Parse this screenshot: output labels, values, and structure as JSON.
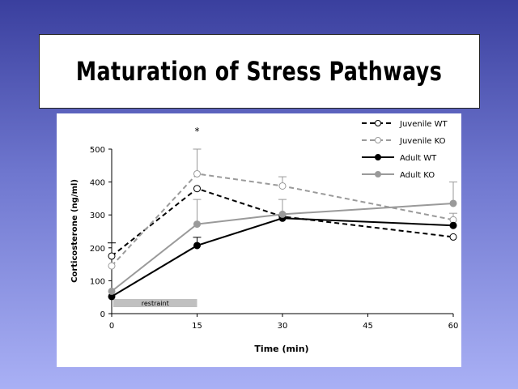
{
  "slide": {
    "title": "Maturation of Stress Pathways"
  },
  "chart_data": {
    "type": "line",
    "xlabel": "Time (min)",
    "ylabel": "Corticosterone (ng/ml)",
    "x": [
      0,
      15,
      30,
      60
    ],
    "xticks": [
      0,
      15,
      30,
      45,
      60
    ],
    "yticks": [
      0,
      100,
      200,
      300,
      400,
      500
    ],
    "xlim": [
      0,
      60
    ],
    "ylim": [
      0,
      500
    ],
    "grid": false,
    "legend_position": "top-right",
    "series": [
      {
        "name": "Juvenile WT",
        "values": [
          175,
          380,
          295,
          233
        ],
        "errors": [
          40,
          0,
          0,
          0
        ],
        "color": "#000000",
        "dash": true,
        "marker": "open"
      },
      {
        "name": "Juvenile KO",
        "values": [
          145,
          425,
          388,
          285
        ],
        "errors": [
          0,
          75,
          28,
          20
        ],
        "color": "#9a9a9a",
        "dash": true,
        "marker": "open"
      },
      {
        "name": "Adult WT",
        "values": [
          52,
          207,
          290,
          268
        ],
        "errors": [
          0,
          25,
          0,
          0
        ],
        "color": "#000000",
        "dash": false,
        "marker": "filled"
      },
      {
        "name": "Adult KO",
        "values": [
          68,
          272,
          302,
          335
        ],
        "errors": [
          0,
          75,
          45,
          65
        ],
        "color": "#9a9a9a",
        "dash": false,
        "marker": "filled"
      }
    ],
    "annotations": [
      {
        "text": "*",
        "x": 15
      },
      {
        "text": "restraint",
        "x_start": 0,
        "x_end": 15
      }
    ]
  }
}
